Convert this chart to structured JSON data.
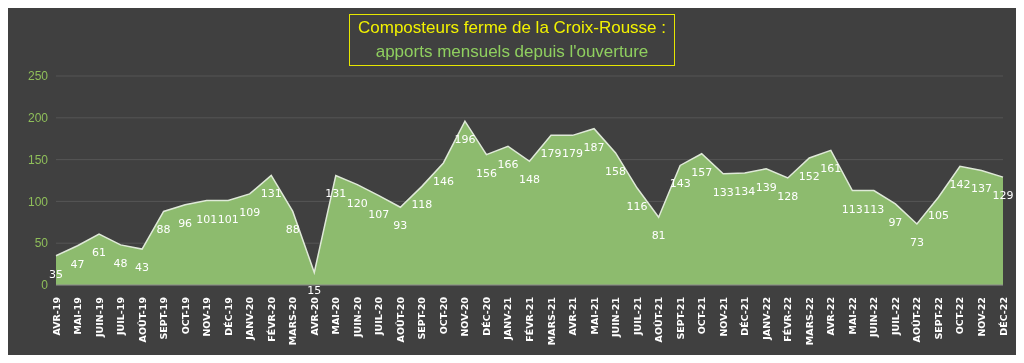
{
  "chart_data": {
    "type": "area",
    "title": "Composteurs ferme de la Croix-Rousse :",
    "subtitle": "apports mensuels depuis l'ouverture",
    "categories": [
      "AVR-19",
      "MAI-19",
      "JUIN-19",
      "JUIL-19",
      "AOÛT-19",
      "SEPT-19",
      "OCT-19",
      "NOV-19",
      "DÉC-19",
      "JANV-20",
      "FÉVR-20",
      "MARS-20",
      "AVR-20",
      "MAI-20",
      "JUIN-20",
      "JUIL-20",
      "AOÛT-20",
      "SEPT-20",
      "OCT-20",
      "NOV-20",
      "DÉC-20",
      "JANV-21",
      "FÉVR-21",
      "MARS-21",
      "AVR-21",
      "MAI-21",
      "JUIN-21",
      "JUIL-21",
      "AOÛT-21",
      "SEPT-21",
      "OCT-21",
      "NOV-21",
      "DÉC-21",
      "JANV-22",
      "FÉVR-22",
      "MARS-22",
      "AVR-22",
      "MAI-22",
      "JUIN-22",
      "JUIL-22",
      "AOÛT-22",
      "SEPT-22",
      "OCT-22",
      "NOV-22",
      "DÉC-22"
    ],
    "values": [
      35,
      47,
      61,
      48,
      43,
      88,
      96,
      101,
      101,
      109,
      131,
      88,
      15,
      131,
      120,
      107,
      93,
      118,
      146,
      196,
      156,
      166,
      148,
      179,
      179,
      187,
      158,
      116,
      81,
      143,
      157,
      133,
      134,
      139,
      128,
      152,
      161,
      113,
      113,
      97,
      73,
      105,
      142,
      137,
      129
    ],
    "color": "#8dbb6e",
    "ylim": [
      0,
      250
    ],
    "yticks": [
      0,
      50,
      100,
      150,
      200,
      250
    ],
    "grid": "y",
    "data_labels": true
  }
}
